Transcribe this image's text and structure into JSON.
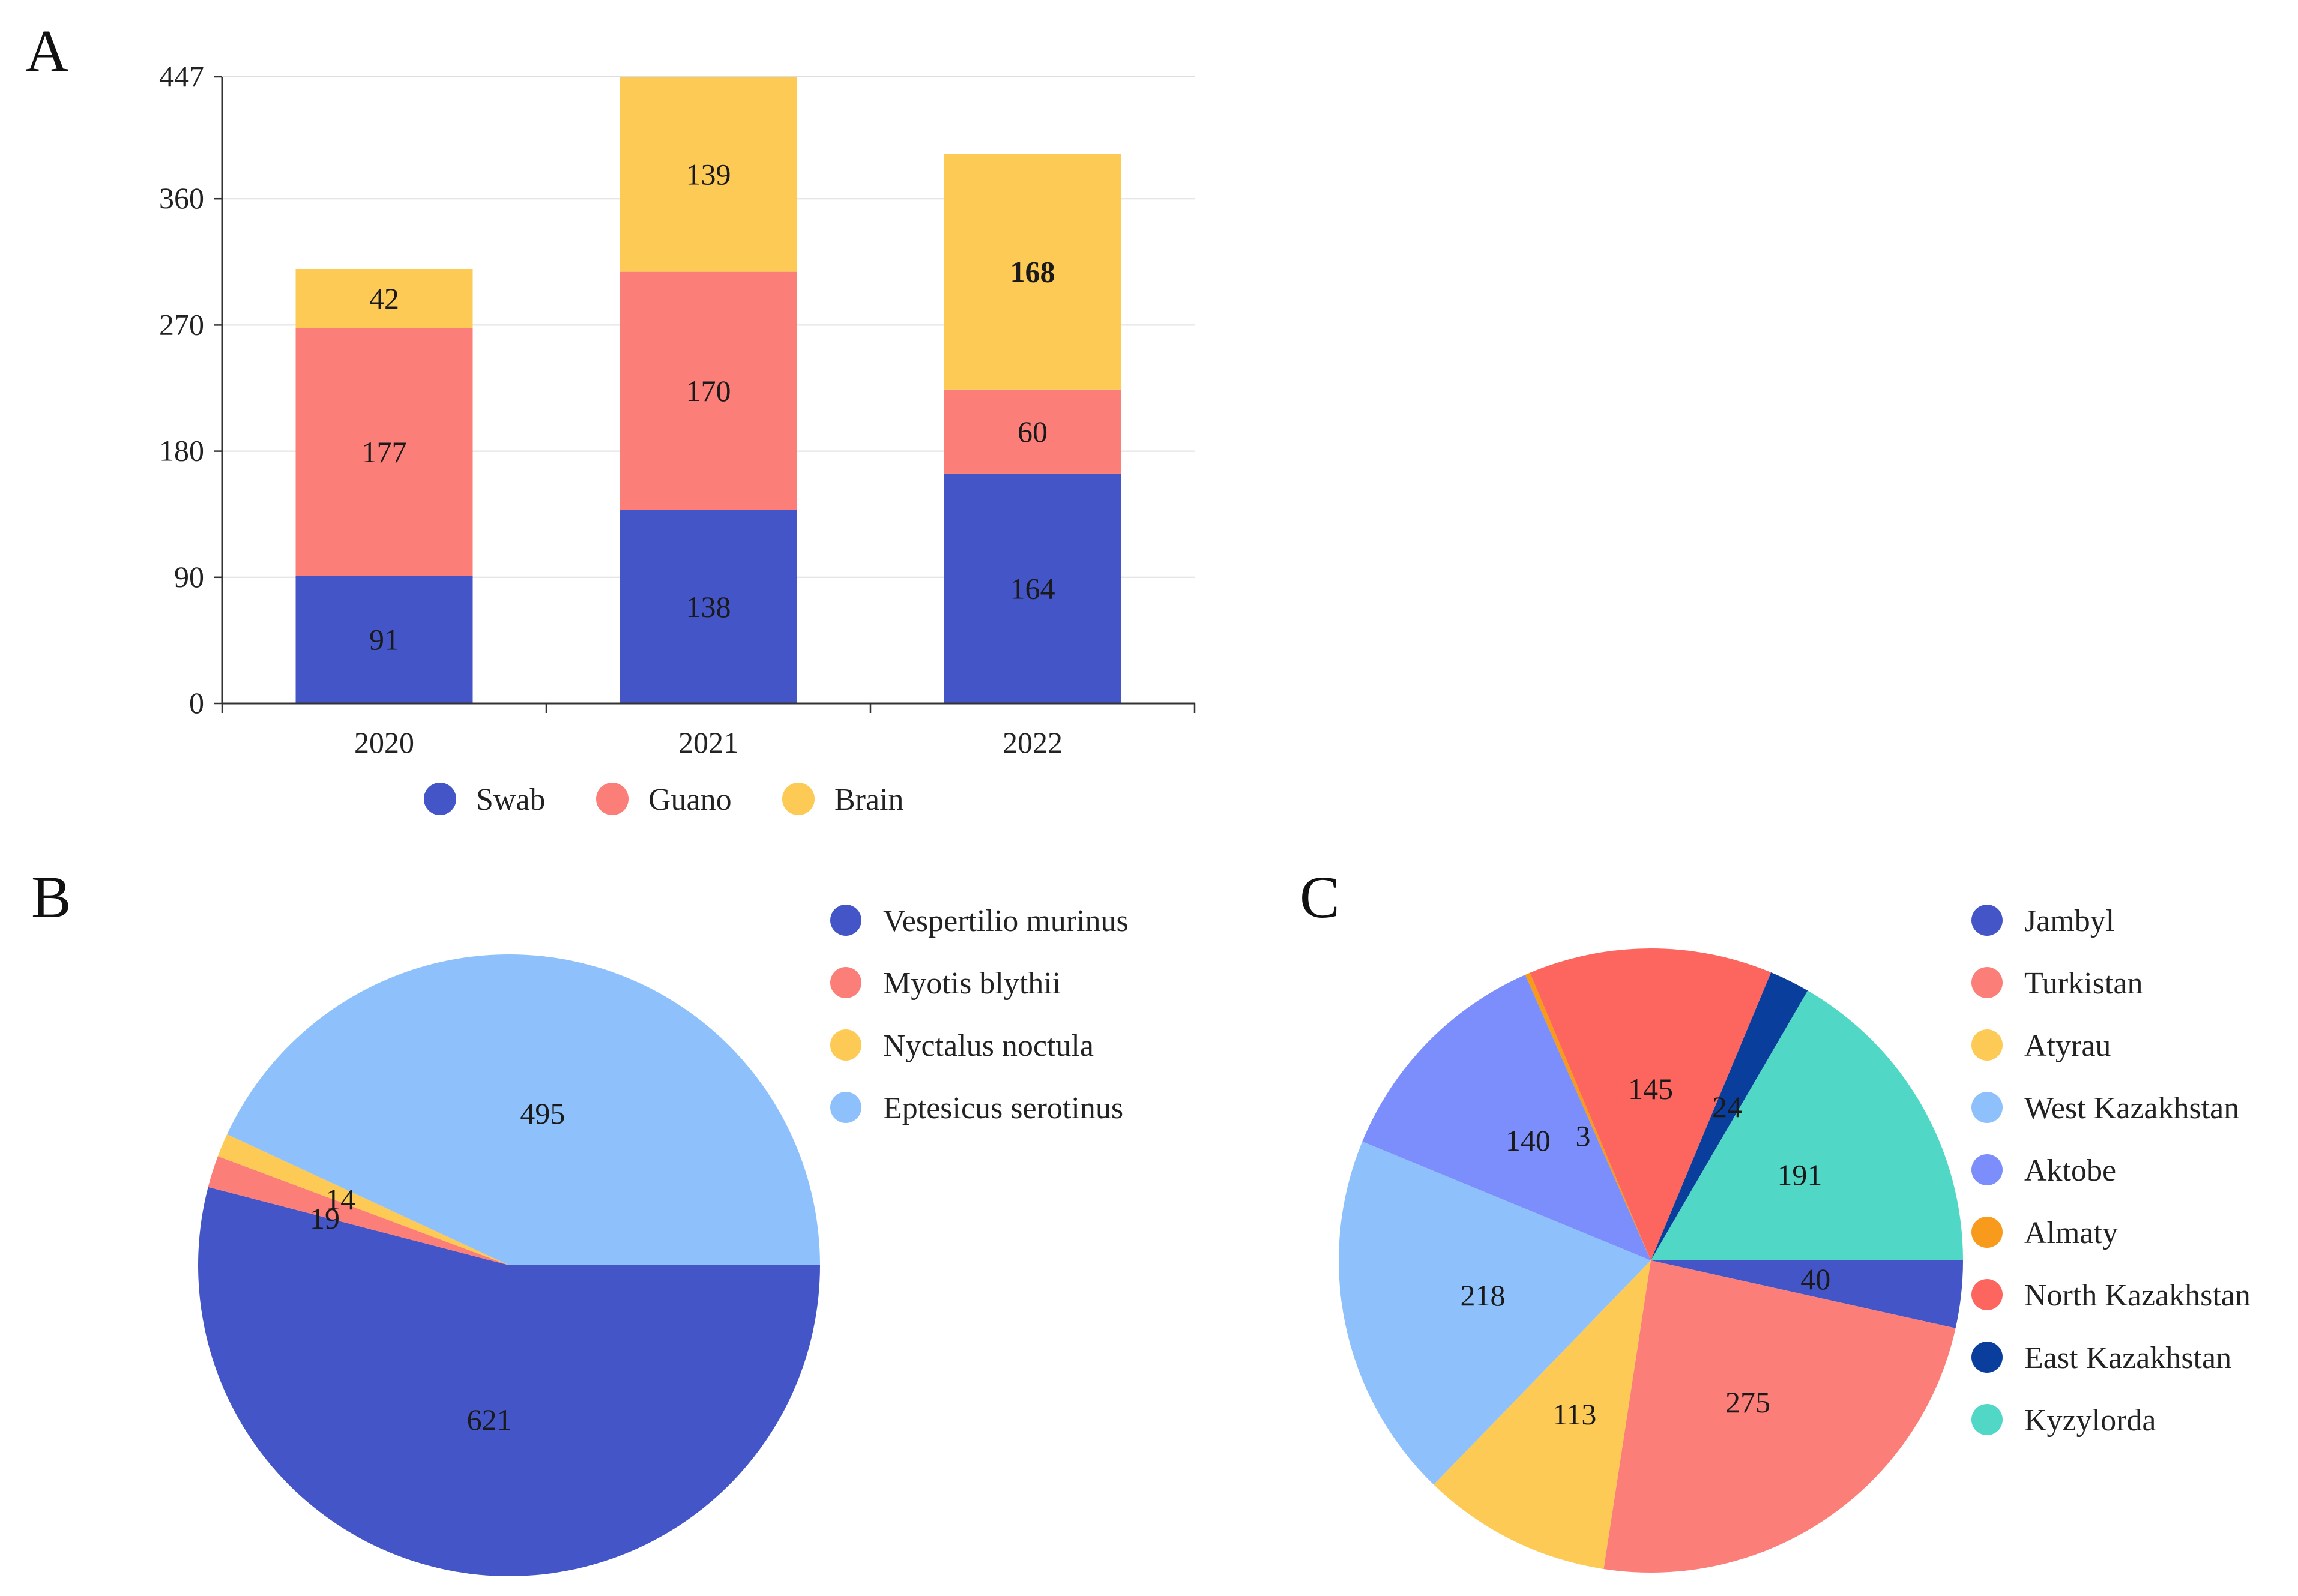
{
  "chart_data": [
    {
      "panel": "A",
      "type": "bar",
      "stacked": true,
      "categories": [
        "2020",
        "2021",
        "2022"
      ],
      "series": [
        {
          "name": "Swab",
          "color": "#4355C7",
          "values": [
            91,
            138,
            164
          ]
        },
        {
          "name": "Guano",
          "color": "#FC7E78",
          "values": [
            177,
            170,
            60
          ]
        },
        {
          "name": "Brain",
          "color": "#FCCA55",
          "values": [
            42,
            139,
            168
          ]
        }
      ],
      "yticks": [
        0,
        90,
        180,
        270,
        360,
        447
      ],
      "ylim": [
        0,
        447
      ],
      "grid": true,
      "legend_position": "bottom",
      "title": "",
      "xlabel": "",
      "ylabel": ""
    },
    {
      "panel": "B",
      "type": "pie",
      "labels": [
        "Vespertilio murinus",
        "Myotis blythii",
        "Nyctalus noctula",
        "Eptesicus serotinus"
      ],
      "values": [
        621,
        19,
        14,
        495
      ],
      "colors": [
        "#4355C7",
        "#FC7E78",
        "#FCCA55",
        "#8EC1FC"
      ],
      "legend_position": "top-right"
    },
    {
      "panel": "C",
      "type": "pie",
      "labels": [
        "Jambyl",
        "Turkistan",
        "Atyrau",
        "West Kazakhstan",
        "Aktobe",
        "Almaty",
        "North Kazakhstan",
        "East Kazakhstan",
        "Kyzylorda"
      ],
      "values": [
        40,
        275,
        113,
        218,
        140,
        3,
        145,
        24,
        191
      ],
      "colors": [
        "#4355C7",
        "#FC7E78",
        "#FCCA55",
        "#8EC1FC",
        "#7B8EFB",
        "#F89A1C",
        "#FD665F",
        "#0A3E9C",
        "#50D7C5"
      ],
      "legend_position": "right"
    }
  ]
}
